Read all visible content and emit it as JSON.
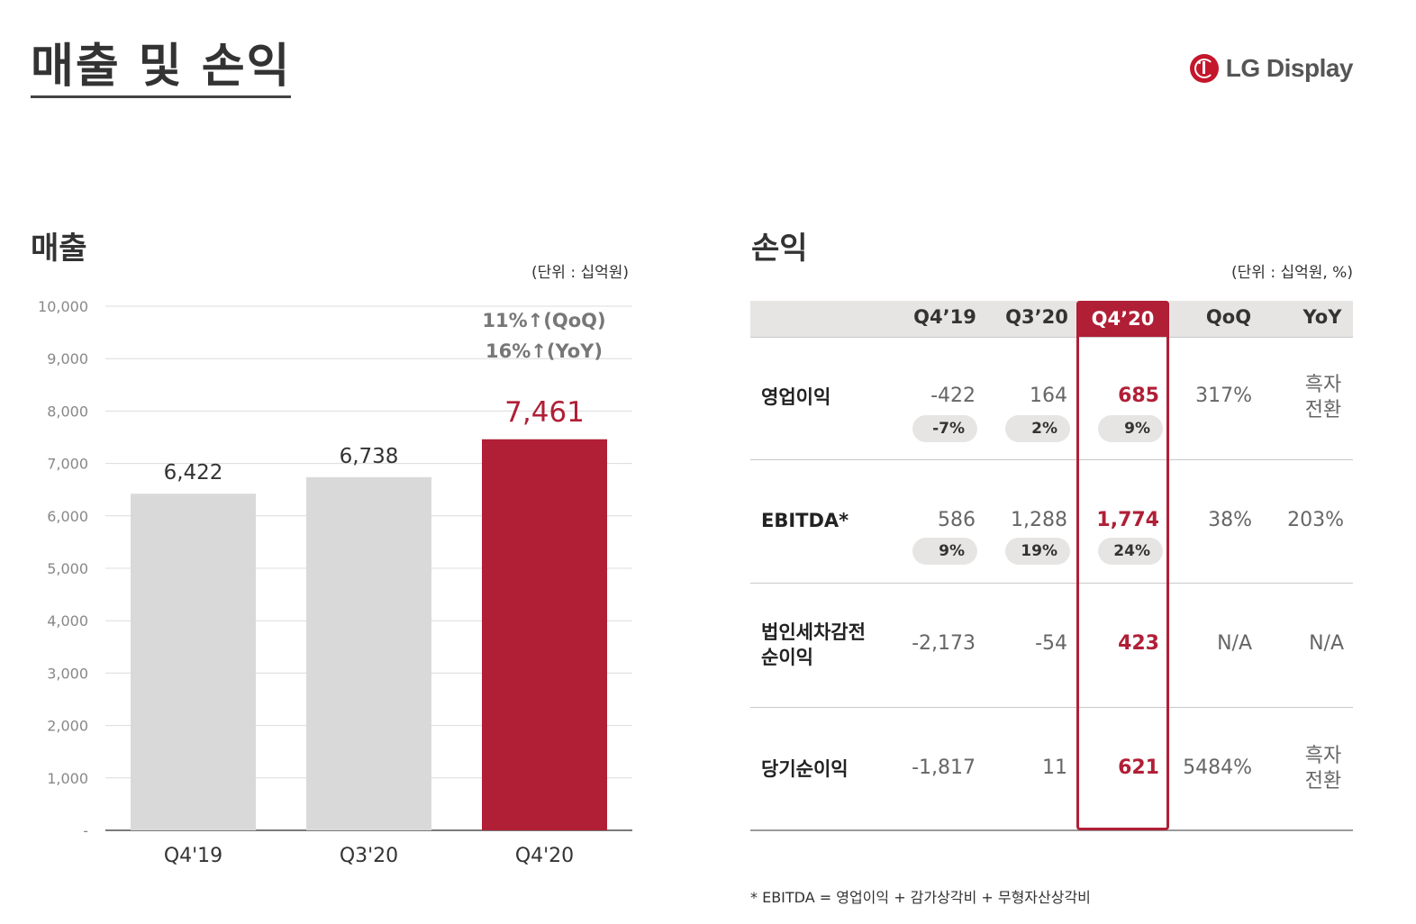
{
  "page": {
    "title": "매출 및 손익"
  },
  "logo": {
    "text": "LG Display",
    "color": "#c4172c"
  },
  "sales": {
    "title": "매출",
    "unit": "(단위 : 십억원)",
    "growth_qoq": "11%↑(QoQ)",
    "growth_yoy": "16%↑(YoY)"
  },
  "chart_data": {
    "type": "bar",
    "categories": [
      "Q4'19",
      "Q3'20",
      "Q4'20"
    ],
    "values": [
      6422,
      6738,
      7461
    ],
    "value_labels": [
      "6,422",
      "6,738",
      "7,461"
    ],
    "bar_colors": [
      "#d9d9d9",
      "#d9d9d9",
      "#b01f36"
    ],
    "ylim": [
      0,
      10000
    ],
    "yticks": [
      0,
      1000,
      2000,
      3000,
      4000,
      5000,
      6000,
      7000,
      8000,
      9000,
      10000
    ],
    "ytick_labels": [
      "-",
      "1,000",
      "2,000",
      "3,000",
      "4,000",
      "5,000",
      "6,000",
      "7,000",
      "8,000",
      "9,000",
      "10,000"
    ],
    "grid": true,
    "highlight_color": "#b01f36"
  },
  "profit": {
    "title": "손익",
    "unit": "(단위 : 십억원, %)",
    "columns": [
      "Q4’19",
      "Q3’20",
      "Q4’20",
      "QoQ",
      "YoY"
    ],
    "rows": [
      {
        "label": "영업이익",
        "values": [
          "-422",
          "164",
          "685"
        ],
        "margins": [
          "-7%",
          "2%",
          "9%"
        ],
        "qoq": "317%",
        "yoy": "흑자\n전환"
      },
      {
        "label": "EBITDA*",
        "values": [
          "586",
          "1,288",
          "1,774"
        ],
        "margins": [
          "9%",
          "19%",
          "24%"
        ],
        "qoq": "38%",
        "yoy": "203%"
      },
      {
        "label": "법인세차감전\n순이익",
        "values": [
          "-2,173",
          "-54",
          "423"
        ],
        "margins": [],
        "qoq": "N/A",
        "yoy": "N/A"
      },
      {
        "label": "당기순이익",
        "values": [
          "-1,817",
          "11",
          "621"
        ],
        "margins": [],
        "qoq": "5484%",
        "yoy": "흑자\n전환"
      }
    ],
    "footnote": "* EBITDA = 영업이익 + 감가상각비 + 무형자산상각비"
  }
}
